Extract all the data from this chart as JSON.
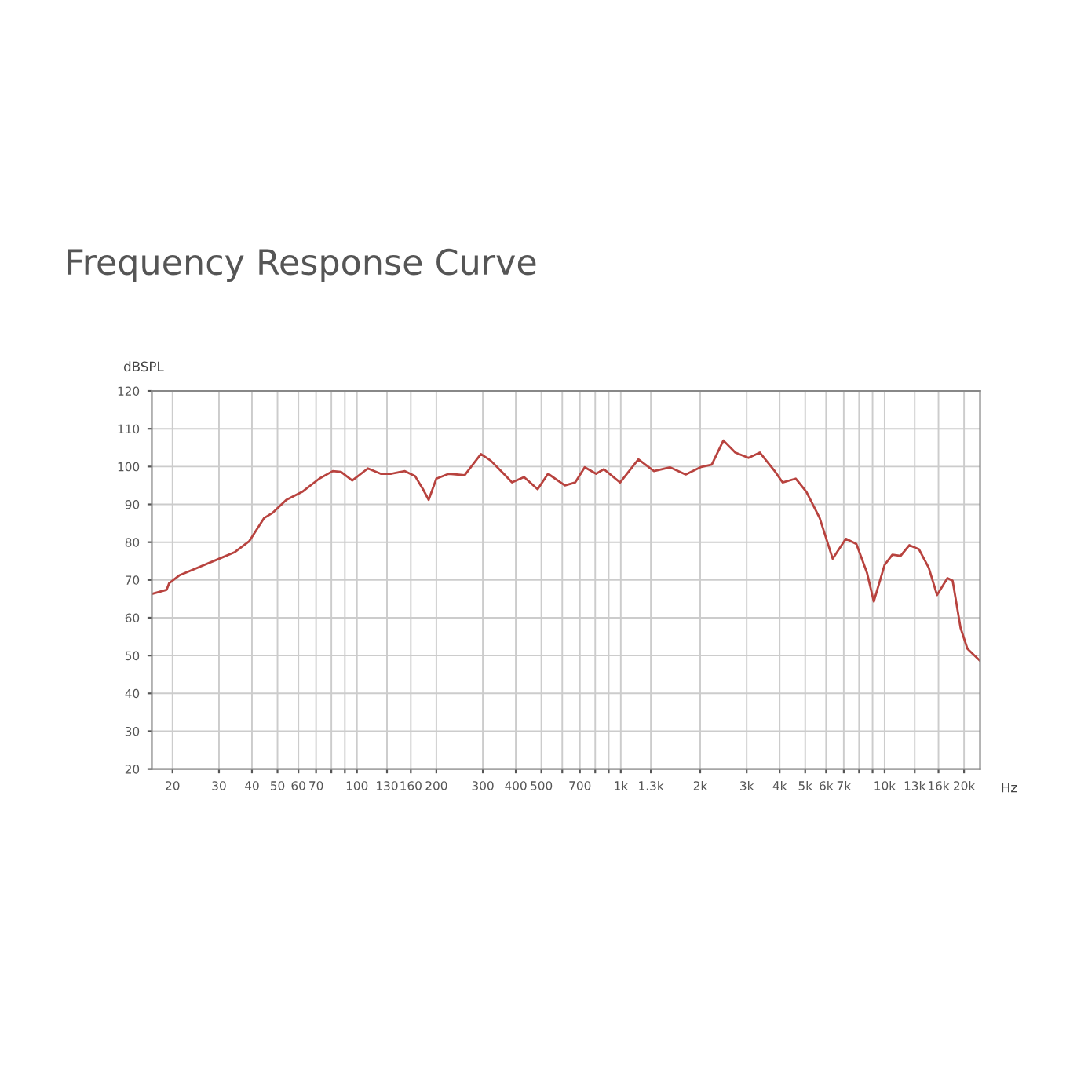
{
  "chart_data": {
    "type": "line",
    "title": "Frequency Response Curve",
    "xlabel": "Hz",
    "ylabel": "dBSPL",
    "log": "x",
    "grid": true,
    "marker": "none",
    "line_style": "solid",
    "xlim": [
      16.7,
      23000
    ],
    "ylim": [
      20,
      120
    ],
    "xticks": [
      20,
      30,
      40,
      50,
      60,
      70,
      {
        "value": 80,
        "label": null
      },
      {
        "value": 90,
        "label": null
      },
      100,
      130,
      160,
      200,
      300,
      400,
      500,
      {
        "value": 600,
        "label": null
      },
      700,
      {
        "value": 800,
        "label": null
      },
      {
        "value": 900,
        "label": null
      },
      {
        "value": 1000,
        "label": "1k"
      },
      {
        "value": 1300,
        "label": "1.3k"
      },
      {
        "value": 2000,
        "label": "2k"
      },
      {
        "value": 3000,
        "label": "3k"
      },
      {
        "value": 4000,
        "label": "4k"
      },
      {
        "value": 5000,
        "label": "5k"
      },
      {
        "value": 6000,
        "label": "6k"
      },
      {
        "value": 7000,
        "label": "7k"
      },
      {
        "value": 8000,
        "label": null
      },
      {
        "value": 9000,
        "label": null
      },
      {
        "value": 10000,
        "label": "10k"
      },
      {
        "value": 13000,
        "label": "13k"
      },
      {
        "value": 16000,
        "label": "16k"
      },
      {
        "value": 20000,
        "label": "20k"
      }
    ],
    "yticks": [
      20,
      30,
      40,
      50,
      60,
      70,
      80,
      90,
      100,
      110,
      120
    ],
    "series": [
      {
        "color": "#b8433f",
        "x": [
          16.7,
          19.0,
          19.4,
          21.2,
          30,
          34.5,
          39,
          44.5,
          48,
          54,
          62,
          72,
          81,
          87,
          96,
          110,
          123,
          135,
          152,
          166,
          178,
          187,
          200,
          223,
          256,
          295,
          321,
          360,
          387,
          430,
          484,
          530,
          614,
          672,
          730,
          806,
          863,
          994,
          1166,
          1336,
          1535,
          1762,
          2018,
          2212,
          2448,
          2717,
          3048,
          3367,
          3832,
          4104,
          4606,
          5053,
          5674,
          6357,
          7131,
          7817,
          8574,
          9098,
          10000,
          10700,
          11500,
          12400,
          13500,
          14700,
          15800,
          17300,
          18100,
          19400,
          20600,
          23000
        ],
        "values": [
          66.3,
          67.4,
          69.1,
          71.2,
          75.6,
          77.4,
          80.2,
          86.4,
          87.8,
          91.2,
          93.3,
          96.8,
          98.8,
          98.6,
          96.3,
          99.5,
          98.1,
          98.1,
          98.8,
          97.5,
          94,
          91.2,
          96.8,
          98.1,
          97.7,
          103.3,
          101.6,
          98.1,
          95.8,
          97.2,
          94,
          98.1,
          95,
          95.8,
          99.8,
          98.1,
          99.3,
          95.8,
          101.9,
          98.8,
          99.8,
          97.9,
          99.9,
          100.5,
          106.9,
          103.7,
          102.3,
          103.7,
          98.8,
          95.8,
          96.8,
          93.3,
          86.4,
          75.6,
          80.9,
          79.5,
          71.9,
          64.3,
          74,
          76.7,
          76.4,
          79.2,
          78.1,
          73.2,
          66,
          70.5,
          69.8,
          57.3,
          51.8,
          48.6
        ]
      }
    ]
  }
}
